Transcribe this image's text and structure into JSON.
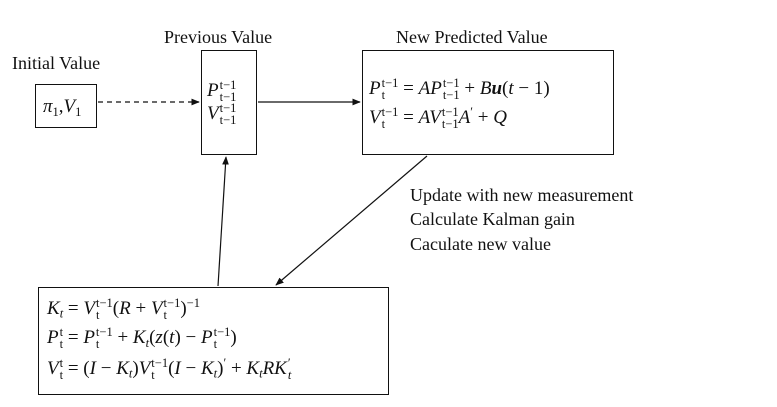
{
  "labels": {
    "initial": "Initial Value",
    "previous": "Previous Value",
    "predicted": "New Predicted Value"
  },
  "initial_box": {
    "expr": "π1,V1"
  },
  "previous_box": {
    "p": "P",
    "p_sup": "t−1",
    "p_sub": "t−1",
    "v": "V",
    "v_sup": "t−1",
    "v_sub": "t−1"
  },
  "predicted_box": {
    "line1": "Pt t−1 = APt−1 t−1 + Bu(t − 1)",
    "line2": "Vt t−1 = AVt−1 t−1 A′ + Q"
  },
  "update_notes": [
    "Update with new measurement",
    "Calculate Kalman gain",
    "Caculate new value"
  ],
  "update_box": {
    "line1": "Kt = Vt t−1 (R + Vt t−1)−1",
    "line2": "Pt t = Pt t−1 + Kt(z(t) − Pt t−1)",
    "line3": "Vt t = (I − Kt)Vt t−1(I − Kt)′ + KtRKt′"
  }
}
